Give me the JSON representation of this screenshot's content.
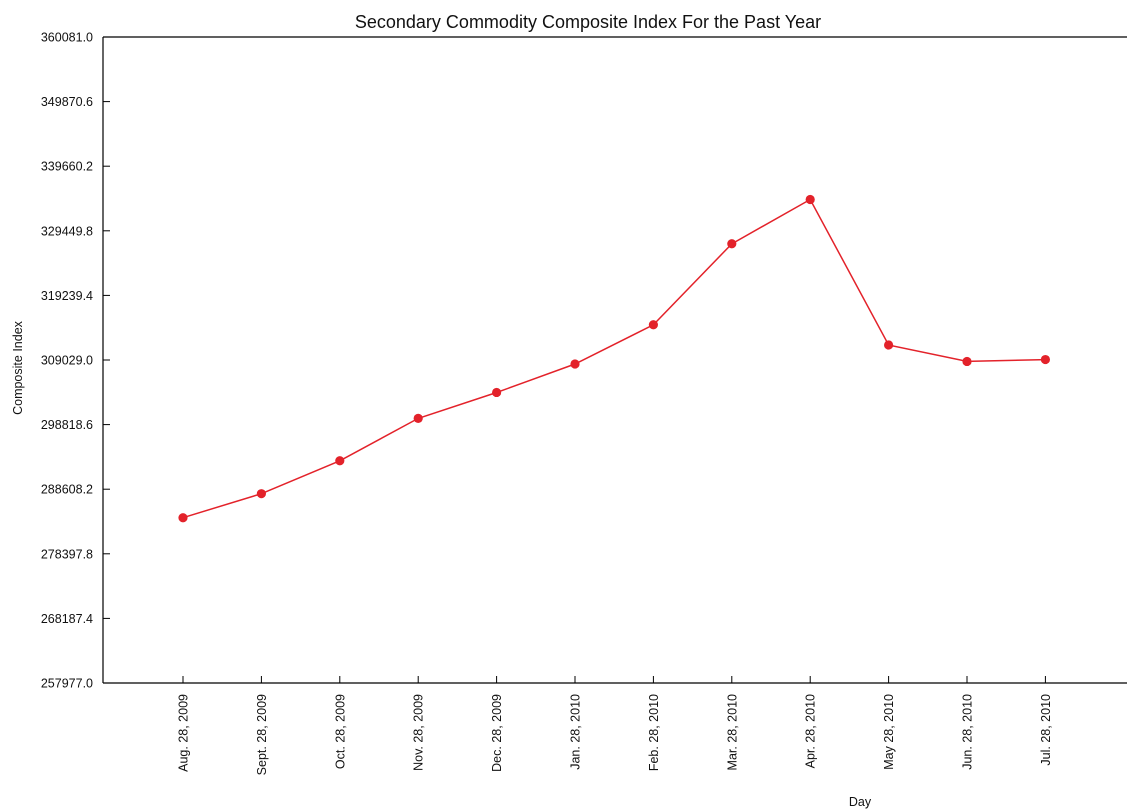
{
  "chart_data": {
    "type": "line",
    "title": "Secondary Commodity Composite Index For the Past Year",
    "xlabel": "Day",
    "ylabel": "Composite Index",
    "categories": [
      "Aug. 28, 2009",
      "Sept. 28, 2009",
      "Oct. 28, 2009",
      "Nov. 28, 2009",
      "Dec. 28, 2009",
      "Jan. 28, 2010",
      "Feb. 28, 2010",
      "Mar. 28, 2010",
      "Apr. 28, 2010",
      "May 28, 2010",
      "Jun. 28, 2010",
      "Jul. 28, 2010"
    ],
    "series": [
      {
        "values": [
          284100,
          287900,
          293100,
          299800,
          303900,
          308400,
          314600,
          327400,
          334400,
          311400,
          308800,
          309100
        ]
      }
    ],
    "ylim": [
      257977.0,
      360081.0
    ],
    "yticks": [
      "257977.0",
      "268187.4",
      "278397.8",
      "288608.2",
      "298818.6",
      "309029.0",
      "319239.4",
      "329449.8",
      "339660.2",
      "349870.6",
      "360081.0"
    ],
    "grid": false,
    "legend": "none",
    "colors": {
      "line": "#e3222a",
      "axis": "#000000"
    }
  }
}
